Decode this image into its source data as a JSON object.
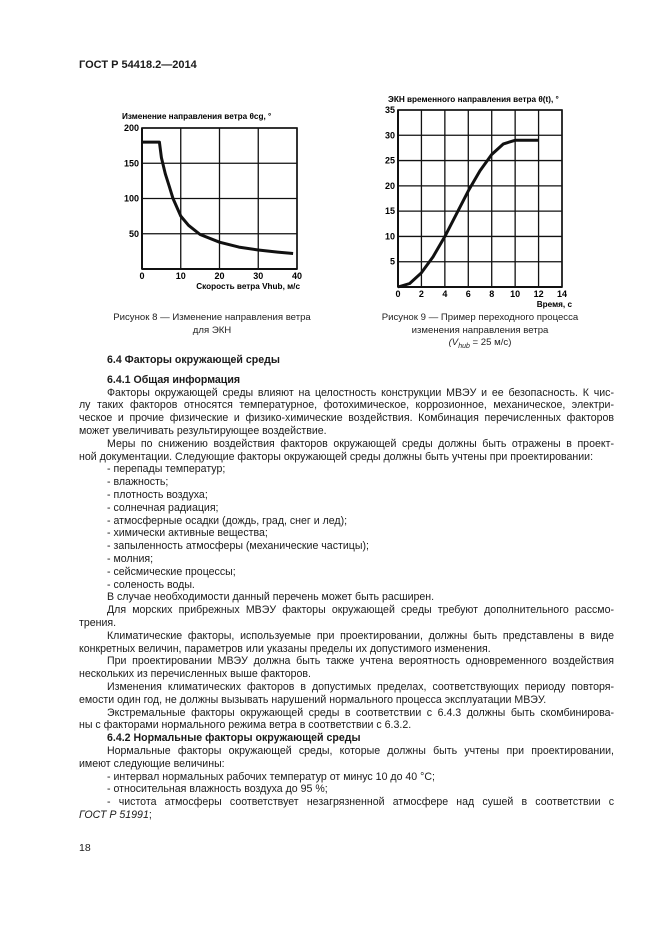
{
  "header": "ГОСТ Р 54418.2—2014",
  "chart_data": [
    {
      "type": "line",
      "title": "Изменение направления ветра θcg, °",
      "xlabel": "Скорость ветра Vhub, м/с",
      "ylabel": "",
      "xlim": [
        0,
        40
      ],
      "ylim": [
        0,
        200
      ],
      "xticks": [
        0,
        10,
        20,
        30,
        40
      ],
      "yticks": [
        50,
        100,
        150,
        200
      ],
      "ytick_labels": [
        "50",
        "100",
        "150",
        "200"
      ],
      "xtick_labels": [
        "0",
        "10",
        "20",
        "30",
        "40"
      ],
      "grid": true,
      "x": [
        0,
        4.5,
        5,
        6,
        7,
        8,
        10,
        12,
        15,
        20,
        25,
        30,
        35,
        39
      ],
      "y": [
        180,
        180,
        158,
        135,
        118,
        100,
        75,
        62,
        49,
        38,
        31,
        27,
        24,
        22
      ],
      "caption": [
        "Рисунок 8 — Изменение направления ветра",
        "для ЭКН"
      ]
    },
    {
      "type": "line",
      "title": "ЭКН временного направления ветра θ(t), °",
      "xlabel": "Время, с",
      "ylabel": "",
      "xlim": [
        0,
        14
      ],
      "ylim": [
        0,
        35
      ],
      "xticks": [
        0,
        2,
        4,
        6,
        8,
        10,
        12,
        14
      ],
      "xtick_labels": [
        "0",
        "2",
        "4",
        "6",
        "8",
        "10",
        "12",
        "14"
      ],
      "yticks": [
        5,
        10,
        15,
        20,
        25,
        30,
        35
      ],
      "ytick_labels": [
        "5",
        "10",
        "15",
        "20",
        "25",
        "30",
        "35"
      ],
      "grid": true,
      "x": [
        0,
        1,
        2,
        3,
        4,
        5,
        6,
        7,
        8,
        9,
        10,
        11,
        12
      ],
      "y": [
        0,
        0.7,
        2.8,
        6.0,
        10.0,
        14.5,
        19.0,
        23.0,
        26.2,
        28.3,
        29,
        29,
        29
      ],
      "caption": [
        "Рисунок 9 — Пример переходного процесса",
        "изменения направления ветра",
        "(V",
        "hub",
        " = 25 м/с)"
      ]
    }
  ],
  "section": {
    "heading": "6.4  Факторы окружающей среды",
    "sub1": "6.4.1 Общая информация",
    "p1": [
      "Факторы окружающей среды влияют на целостность конструкции МВЭУ и ее безопасность. К чис-",
      "лу таких факторов относятся температурное, фотохимическое, коррозионное, механическое, электри-",
      "ческое и прочие физические и физико-химические воздействия. Комбинация перечисленных факторов",
      "может увеличивать результирующее воздействие."
    ],
    "p2": [
      "Меры по снижению воздействия факторов окружающей среды должны быть отражены в проект-",
      "ной документации. Следующие факторы окружающей среды должны быть учтены при проектировании:"
    ],
    "list1": [
      "- перепады температур;",
      "- влажность;",
      "- плотность воздуха;",
      "- солнечная радиация;",
      "- атмосферные осадки (дождь, град, снег и лед);",
      "- химически активные вещества;",
      "- запыленность атмосферы (механические частицы);",
      "- молния;",
      "- сейсмические процессы;",
      "- соленость воды."
    ],
    "p3": "В случае необходимости данный перечень может быть расширен.",
    "p4": [
      "Для морских прибрежных МВЭУ факторы окружающей среды требуют дополнительного рассмо-",
      "трения."
    ],
    "p5": [
      "Климатические факторы, используемые при проектировании, должны быть представлены в виде",
      "конкретных величин, параметров или указаны пределы их допустимого изменения."
    ],
    "p6": [
      "При проектировании МВЭУ должна быть также учтена вероятность одновременного воздействия",
      "нескольких из перечисленных выше факторов."
    ],
    "p7": [
      "Изменения климатических факторов в допустимых пределах, соответствующих периоду повторя-",
      "емости один год, не должны вызывать нарушений нормального процесса эксплуатации МВЭУ."
    ],
    "p8": [
      "Экстремальные факторы окружающей среды в соответствии с 6.4.3 должны быть скомбинирова-",
      "ны с факторами нормального режима ветра в соответствии с 6.3.2."
    ],
    "sub2": "6.4.2 Нормальные факторы окружающей среды",
    "p9": [
      "Нормальные факторы окружающей среды, которые должны быть учтены при проектировании,",
      "имеют следующие величины:"
    ],
    "list2": [
      "- интервал нормальных рабочих температур от минус 10 до 40 °С;",
      "- относительная влажность воздуха до 95 %;",
      "- чистота атмосферы соответствует незагрязненной атмосфере над сушей в соответствии с"
    ],
    "ref": "ГОСТ Р 51991",
    "ref_tail": ";"
  },
  "page_number": "18"
}
